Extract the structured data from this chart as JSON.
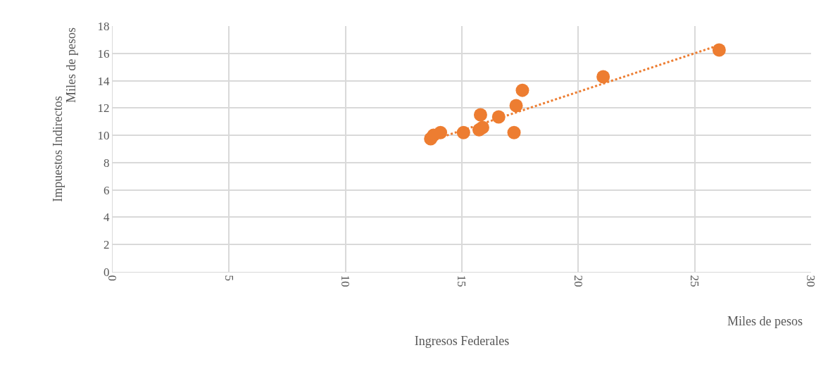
{
  "chart_data": {
    "type": "scatter",
    "xlabel": "Ingresos Federales",
    "ylabel": "Impuestos Indirectos",
    "annotations": [
      "Miles de pesos",
      "Miles de pesos"
    ],
    "xlim": [
      0,
      30
    ],
    "xticks": [
      0,
      5,
      10,
      15,
      20,
      25,
      30
    ],
    "ylim": [
      0,
      18
    ],
    "yticks": [
      0,
      2,
      4,
      6,
      8,
      10,
      12,
      14,
      16,
      18
    ],
    "grid": true,
    "series": [
      {
        "marker": "circle",
        "color": "#ed7d31",
        "x": [
          13.66,
          13.78,
          14.08,
          15.07,
          15.74,
          15.89,
          15.8,
          16.58,
          17.24,
          17.33,
          17.6,
          21.07,
          26.05
        ],
        "values": [
          9.75,
          10.0,
          10.2,
          10.2,
          10.4,
          10.57,
          11.5,
          11.35,
          10.2,
          12.17,
          13.3,
          14.29,
          16.25
        ]
      },
      {
        "type": "line",
        "color": "#ed7d31",
        "line_style": "dotted",
        "x": [
          13.66,
          26.05
        ],
        "values": [
          9.6,
          16.6
        ]
      }
    ]
  }
}
